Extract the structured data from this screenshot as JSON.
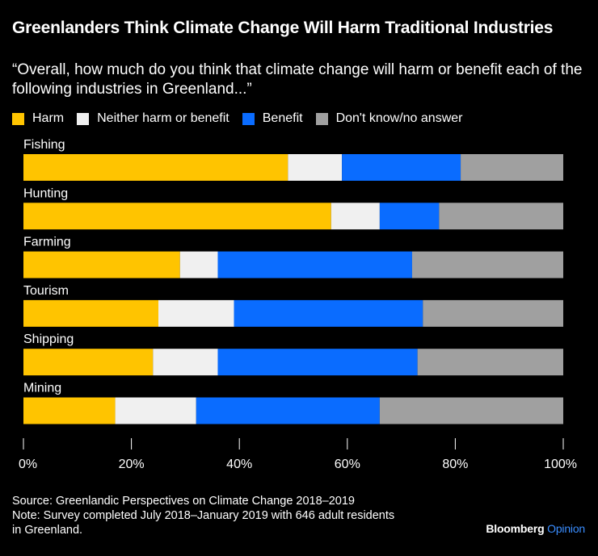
{
  "colors": {
    "harm": "#ffc400",
    "neither": "#f0f0f0",
    "benefit": "#0a6cff",
    "dontknow": "#a0a0a0",
    "text": "#ffffff",
    "background": "#000000",
    "brand_accent": "#3a8dff"
  },
  "brand": {
    "name": "Bloomberg",
    "suffix": "Opinion"
  },
  "footer": {
    "source": "Source: Greenlandic Perspectives on Climate Change 2018–2019",
    "note_line1": "Note: Survey completed July 2018–January 2019 with 646 adult residents",
    "note_line2": "in Greenland."
  },
  "chart_data": {
    "type": "bar",
    "orientation": "horizontal",
    "stacked": true,
    "title": "Greenlanders Think Climate Change Will Harm Traditional Industries",
    "subtitle": "“Overall, how much do you think that climate change will harm or benefit each of the following industries in Greenland...”",
    "categories": [
      "Fishing",
      "Hunting",
      "Farming",
      "Tourism",
      "Shipping",
      "Mining"
    ],
    "series": [
      {
        "name": "Harm",
        "key": "harm",
        "values": [
          49,
          57,
          29,
          25,
          24,
          17
        ]
      },
      {
        "name": "Neither harm or benefit",
        "key": "neither",
        "values": [
          10,
          9,
          7,
          14,
          12,
          15
        ]
      },
      {
        "name": "Benefit",
        "key": "benefit",
        "values": [
          22,
          11,
          36,
          35,
          37,
          34
        ]
      },
      {
        "name": "Don't know/no answer",
        "key": "dontknow",
        "values": [
          19,
          23,
          28,
          26,
          27,
          34
        ]
      }
    ],
    "xlim": [
      0,
      100
    ],
    "xticks": [
      "0%",
      "20%",
      "40%",
      "60%",
      "80%",
      "100%"
    ],
    "xtick_values": [
      0,
      20,
      40,
      60,
      80,
      100
    ],
    "legend_position": "top-left",
    "grid": false
  }
}
